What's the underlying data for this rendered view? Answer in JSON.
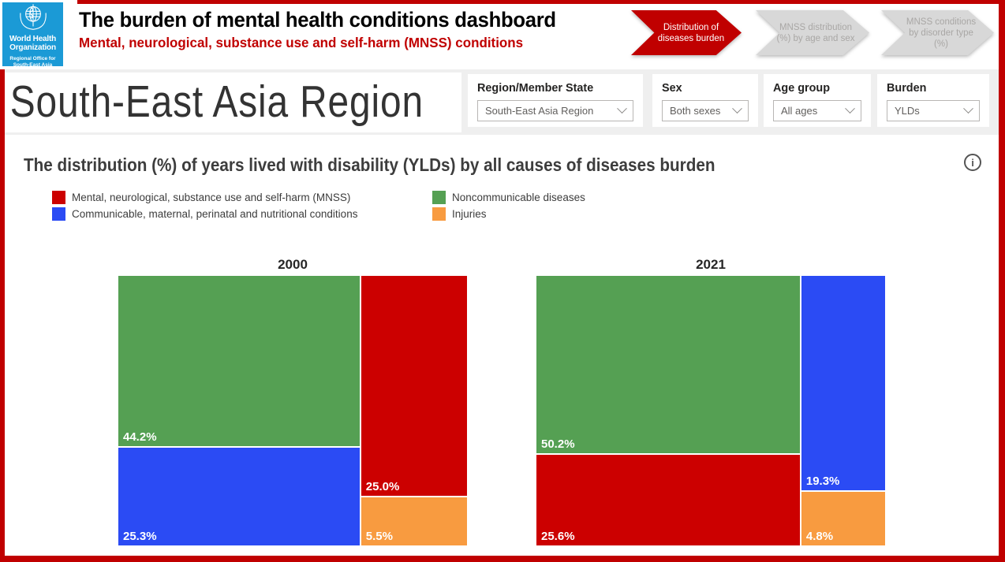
{
  "colors": {
    "accent_red": "#C00000",
    "who_blue": "#1B9AD6",
    "panel_gray": "#EFEFEF",
    "nav_inactive_gray": "#D8D8D8",
    "mnss": "#CC0000",
    "communicable": "#2B4BF4",
    "noncommunicable": "#55A053",
    "injuries": "#F89B40"
  },
  "header": {
    "logo": {
      "org_line1": "World Health",
      "org_line2": "Organization",
      "office_line1": "Regional Office for",
      "office_line2": "South-East Asia"
    },
    "title": "The burden of mental health conditions dashboard",
    "subtitle": "Mental, neurological, substance use and self-harm (MNSS) conditions",
    "nav": [
      {
        "label": "Distribution of diseases burden",
        "active": true
      },
      {
        "label": "MNSS distribution (%) by age and sex",
        "active": false
      },
      {
        "label": "MNSS conditions by disorder type (%)",
        "active": false
      }
    ]
  },
  "filters": {
    "region_title": "South-East Asia Region",
    "controls": [
      {
        "name": "region",
        "label": "Region/Member State",
        "value": "South-East Asia Region"
      },
      {
        "name": "sex",
        "label": "Sex",
        "value": "Both sexes"
      },
      {
        "name": "age-group",
        "label": "Age group",
        "value": "All ages"
      },
      {
        "name": "burden",
        "label": "Burden",
        "value": "YLDs"
      }
    ]
  },
  "chart": {
    "title": "The distribution (%) of years lived with disability (YLDs) by all causes of diseases burden",
    "legend_columns": [
      [
        {
          "key": "mnss",
          "label": "Mental, neurological, substance use and self-harm (MNSS)"
        },
        {
          "key": "communicable",
          "label": "Communicable, maternal, perinatal and nutritional conditions"
        }
      ],
      [
        {
          "key": "noncommunicable",
          "label": "Noncommunicable diseases"
        },
        {
          "key": "injuries",
          "label": "Injuries"
        }
      ]
    ]
  },
  "chart_data": {
    "type": "treemap",
    "title": "The distribution (%) of years lived with disability (YLDs) by all causes of diseases burden",
    "unit": "%",
    "categories": [
      "Mental, neurological, substance use and self-harm (MNSS)",
      "Communicable, maternal, perinatal and nutritional conditions",
      "Noncommunicable diseases",
      "Injuries"
    ],
    "groups": [
      {
        "year": "2000",
        "values": {
          "noncommunicable": 44.2,
          "communicable": 25.3,
          "mnss": 25.0,
          "injuries": 5.5
        },
        "columns": [
          [
            {
              "key": "noncommunicable",
              "value": 44.2,
              "label": "44.2%"
            },
            {
              "key": "communicable",
              "value": 25.3,
              "label": "25.3%"
            }
          ],
          [
            {
              "key": "mnss",
              "value": 25.0,
              "label": "25.0%"
            },
            {
              "key": "injuries",
              "value": 5.5,
              "label": "5.5%"
            }
          ]
        ]
      },
      {
        "year": "2021",
        "values": {
          "noncommunicable": 50.2,
          "mnss": 25.6,
          "communicable": 19.3,
          "injuries": 4.8
        },
        "columns": [
          [
            {
              "key": "noncommunicable",
              "value": 50.2,
              "label": "50.2%"
            },
            {
              "key": "mnss",
              "value": 25.6,
              "label": "25.6%"
            }
          ],
          [
            {
              "key": "communicable",
              "value": 19.3,
              "label": "19.3%"
            },
            {
              "key": "injuries",
              "value": 4.8,
              "label": "4.8%"
            }
          ]
        ]
      }
    ]
  }
}
